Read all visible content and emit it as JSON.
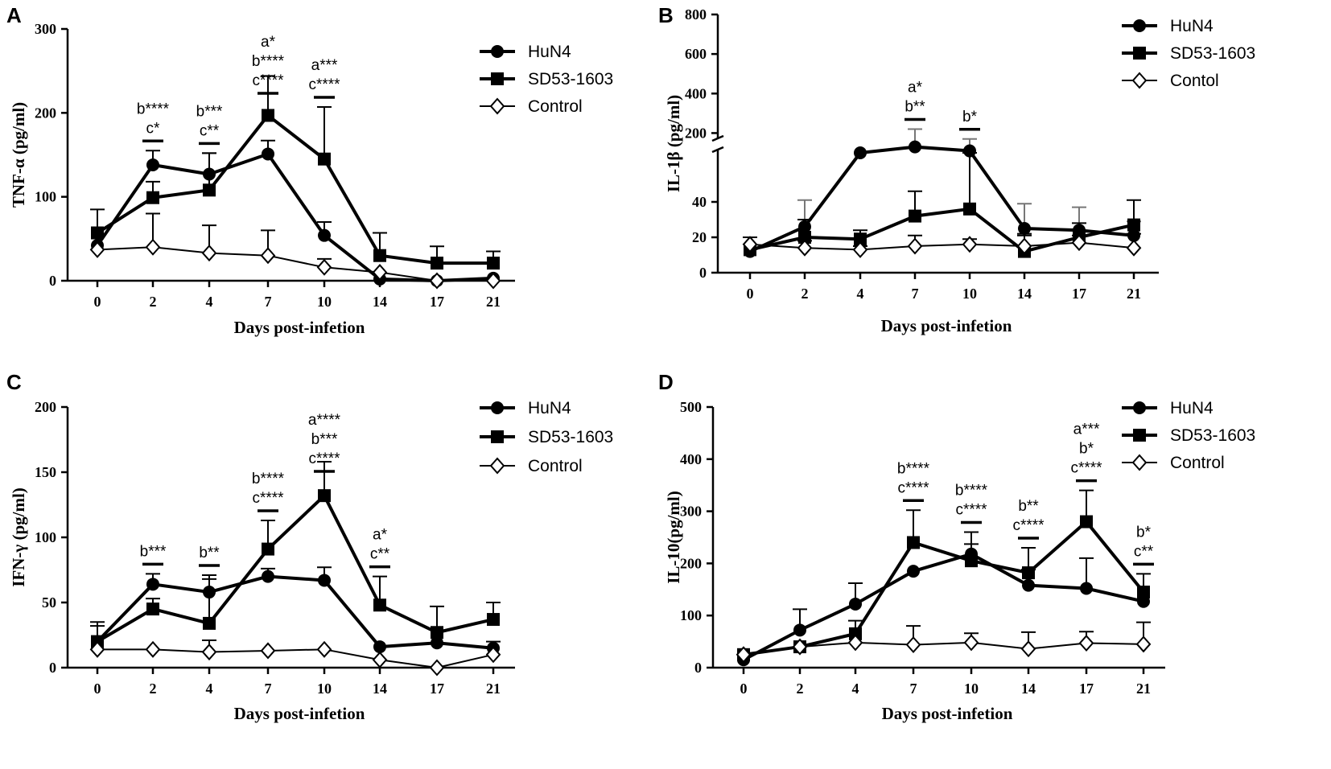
{
  "chart_data": [
    {
      "type": "line",
      "panel": "A",
      "ylabel": "TNF-α (pg/ml)",
      "xlabel": "Days post-infetion",
      "categories": [
        "0",
        "2",
        "4",
        "7",
        "10",
        "14",
        "17",
        "21"
      ],
      "ylim": [
        0,
        300
      ],
      "yticks": [
        "0",
        "100",
        "200",
        "300"
      ],
      "series": [
        {
          "name": "HuN4",
          "values": [
            42,
            138,
            127,
            151,
            54,
            2,
            0,
            3
          ],
          "err": [
            0,
            17,
            25,
            16,
            16,
            0,
            0,
            0
          ]
        },
        {
          "name": "SD53-1603",
          "values": [
            57,
            99,
            108,
            197,
            145,
            30,
            21,
            21
          ],
          "err": [
            28,
            19,
            44,
            47,
            62,
            27,
            20,
            14
          ]
        },
        {
          "name": "Control",
          "values": [
            37,
            40,
            33,
            30,
            16,
            10,
            0,
            0
          ],
          "err": [
            0,
            40,
            33,
            30,
            10,
            0,
            0,
            0
          ]
        }
      ],
      "legend": [
        "HuN4",
        "SD53-1603",
        "Control"
      ],
      "annotations": [
        {
          "x": "2",
          "lines": [
            "b****",
            "c*"
          ]
        },
        {
          "x": "4",
          "lines": [
            "b***",
            "c**"
          ]
        },
        {
          "x": "7",
          "lines": [
            "a*",
            "b****",
            "c****"
          ]
        },
        {
          "x": "10",
          "lines": [
            "a***",
            "c****"
          ]
        }
      ]
    },
    {
      "type": "line",
      "panel": "B",
      "ylabel": "IL-1β (pg/ml)",
      "xlabel": "Days post-infetion",
      "categories": [
        "0",
        "2",
        "4",
        "7",
        "10",
        "14",
        "17",
        "21"
      ],
      "broken_axis": {
        "lower": [
          0,
          50
        ],
        "upper": [
          100,
          800
        ]
      },
      "yticks_lower": [
        "0",
        "20",
        "40"
      ],
      "yticks_upper": [
        "200",
        "400",
        "600",
        "800"
      ],
      "series": [
        {
          "name": "HuN4",
          "values": [
            12,
            26,
            100,
            130,
            110,
            25,
            24,
            21
          ],
          "err": [
            0,
            15,
            0,
            90,
            60,
            14,
            13,
            8
          ]
        },
        {
          "name": "SD53-1603",
          "values": [
            13,
            20,
            19,
            32,
            36,
            12,
            20,
            27
          ],
          "err": [
            0,
            10,
            5,
            14,
            25,
            10,
            8,
            14
          ]
        },
        {
          "name": "Contol",
          "values": [
            16,
            14,
            13,
            15,
            16,
            15,
            17,
            14
          ],
          "err": [
            4,
            4,
            2,
            6,
            3,
            6,
            4,
            8
          ]
        }
      ],
      "legend": [
        "HuN4",
        "SD53-1603",
        "Contol"
      ],
      "annotations": [
        {
          "x": "7",
          "lines": [
            "a*",
            "b**"
          ]
        },
        {
          "x": "10",
          "lines": [
            "b*"
          ]
        }
      ]
    },
    {
      "type": "line",
      "panel": "C",
      "ylabel": "IFN-γ (pg/ml)",
      "xlabel": "Days post-infetion",
      "categories": [
        "0",
        "2",
        "4",
        "7",
        "10",
        "14",
        "17",
        "21"
      ],
      "ylim": [
        0,
        200
      ],
      "yticks": [
        "0",
        "50",
        "100",
        "150",
        "200"
      ],
      "series": [
        {
          "name": "HuN4",
          "values": [
            20,
            64,
            58,
            70,
            67,
            16,
            19,
            15
          ],
          "err": [
            15,
            8,
            10,
            6,
            10,
            0,
            0,
            5
          ]
        },
        {
          "name": "SD53-1603",
          "values": [
            20,
            45,
            34,
            91,
            132,
            48,
            27,
            37
          ],
          "err": [
            12,
            8,
            37,
            22,
            26,
            22,
            20,
            13
          ]
        },
        {
          "name": "Control",
          "values": [
            14,
            14,
            12,
            13,
            14,
            6,
            0,
            10
          ],
          "err": [
            0,
            0,
            9,
            0,
            0,
            0,
            0,
            0
          ]
        }
      ],
      "legend": [
        "HuN4",
        "SD53-1603",
        "Control"
      ],
      "annotations": [
        {
          "x": "2",
          "lines": [
            "b***"
          ]
        },
        {
          "x": "4",
          "lines": [
            "b**"
          ]
        },
        {
          "x": "7",
          "lines": [
            "b****",
            "c****"
          ]
        },
        {
          "x": "10",
          "lines": [
            "a****",
            "b***",
            "c****"
          ]
        },
        {
          "x": "14",
          "lines": [
            "a*",
            "c**"
          ]
        }
      ]
    },
    {
      "type": "line",
      "panel": "D",
      "ylabel": "IL-10(pg/ml)",
      "xlabel": "Days post-infetion",
      "categories": [
        "0",
        "2",
        "4",
        "7",
        "10",
        "14",
        "17",
        "21"
      ],
      "ylim": [
        0,
        500
      ],
      "yticks": [
        "0",
        "100",
        "200",
        "300",
        "400",
        "500"
      ],
      "series": [
        {
          "name": "HuN4",
          "values": [
            15,
            72,
            122,
            185,
            218,
            158,
            152,
            127
          ],
          "err": [
            0,
            40,
            40,
            0,
            42,
            30,
            58,
            0
          ]
        },
        {
          "name": "SD53-1603",
          "values": [
            25,
            40,
            65,
            240,
            205,
            182,
            280,
            145
          ],
          "err": [
            0,
            0,
            25,
            62,
            32,
            48,
            60,
            35
          ]
        },
        {
          "name": "Control",
          "values": [
            25,
            40,
            48,
            44,
            48,
            36,
            47,
            45
          ],
          "err": [
            0,
            0,
            0,
            36,
            18,
            32,
            22,
            42
          ]
        }
      ],
      "legend": [
        "HuN4",
        "SD53-1603",
        "Control"
      ],
      "annotations": [
        {
          "x": "7",
          "lines": [
            "b****",
            "c****"
          ]
        },
        {
          "x": "10",
          "lines": [
            "b****",
            "c****"
          ]
        },
        {
          "x": "14",
          "lines": [
            "b**",
            "c****"
          ]
        },
        {
          "x": "17",
          "lines": [
            "a***",
            "b*",
            "c****"
          ]
        },
        {
          "x": "21",
          "lines": [
            "b*",
            "c**"
          ]
        }
      ]
    }
  ]
}
